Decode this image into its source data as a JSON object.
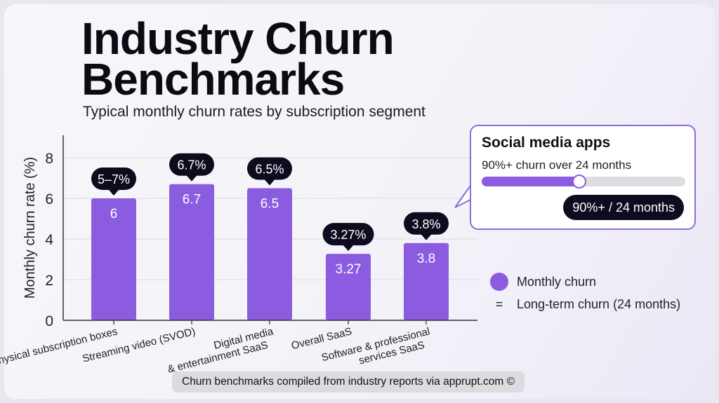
{
  "title": {
    "line1": "Industry Churn",
    "line2": "Benchmarks"
  },
  "subtitle": "Typical monthly churn rates by subscription segment",
  "chart_data": {
    "type": "bar",
    "ylabel": "Monthly churn rate (%)",
    "ylim": [
      0,
      8.5
    ],
    "yticks": [
      "0",
      "2",
      "4",
      "6",
      "8"
    ],
    "ytick_values": [
      0,
      2,
      4,
      6,
      8
    ],
    "categories": [
      "Physical subscription boxes",
      "Streaming video (SVOD)",
      "Digital media\n& entertainment SaaS",
      "Overall SaaS",
      "Software & professional\nservices SaaS"
    ],
    "values": [
      6,
      6.7,
      6.5,
      3.27,
      3.8
    ],
    "value_labels": [
      "6",
      "6.7",
      "6.5",
      "3.27",
      "3.8"
    ],
    "callouts": [
      "5–7%",
      "6.7%",
      "6.5%",
      "3.27%",
      "3.8%"
    ],
    "bar_color": "#8b5ce0",
    "grid": true
  },
  "popup": {
    "heading": "Social media apps",
    "subtitle": "90%+ churn over 24 months",
    "progress": 0.48,
    "pill": "90%+ / 24 months"
  },
  "legend": {
    "monthly": "Monthly churn",
    "eq_symbol": "=",
    "longterm": "Long-term churn (24 months)"
  },
  "footer": "Churn benchmarks compiled from industry reports via apprupt.com ©"
}
